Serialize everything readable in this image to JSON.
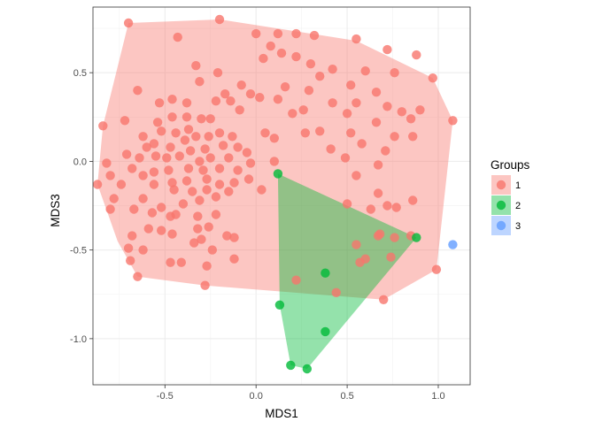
{
  "chart_data": {
    "type": "scatter",
    "title": "",
    "xlabel": "MDS1",
    "ylabel": "MDS3",
    "xlim": [
      -0.895,
      1.175
    ],
    "ylim": [
      -1.26,
      0.87
    ],
    "xticks": [
      -0.5,
      0.0,
      0.5,
      1.0
    ],
    "xtick_labels": [
      "-0.5",
      "0.0",
      "0.5",
      "1.0"
    ],
    "yticks": [
      -1.0,
      -0.5,
      0.0,
      0.5
    ],
    "ytick_labels": [
      "-1.0",
      "-0.5",
      "0.0",
      "0.5"
    ],
    "grid": true,
    "hulls": true,
    "legend": {
      "title": "Groups",
      "position": "right"
    },
    "series": [
      {
        "name": "1",
        "color": "#F8766D",
        "hull": [
          [
            -0.7,
            0.78
          ],
          [
            -0.2,
            0.8
          ],
          [
            0.55,
            0.68
          ],
          [
            0.97,
            0.47
          ],
          [
            1.08,
            0.23
          ],
          [
            0.99,
            -0.61
          ],
          [
            0.7,
            -0.78
          ],
          [
            -0.28,
            -0.7
          ],
          [
            -0.65,
            -0.65
          ],
          [
            -0.76,
            -0.45
          ],
          [
            -0.87,
            -0.13
          ],
          [
            -0.84,
            0.2
          ]
        ],
        "points": [
          [
            -0.7,
            0.78
          ],
          [
            -0.2,
            0.8
          ],
          [
            -0.43,
            0.7
          ],
          [
            0.0,
            0.72
          ],
          [
            0.12,
            0.72
          ],
          [
            0.22,
            0.72
          ],
          [
            0.32,
            0.71
          ],
          [
            0.55,
            0.69
          ],
          [
            0.72,
            0.63
          ],
          [
            0.88,
            0.6
          ],
          [
            0.97,
            0.47
          ],
          [
            0.08,
            0.65
          ],
          [
            0.14,
            0.61
          ],
          [
            0.04,
            0.58
          ],
          [
            0.22,
            0.59
          ],
          [
            0.3,
            0.55
          ],
          [
            0.42,
            0.52
          ],
          [
            0.6,
            0.51
          ],
          [
            0.76,
            0.5
          ],
          [
            -0.33,
            0.54
          ],
          [
            -0.21,
            0.5
          ],
          [
            -0.31,
            0.45
          ],
          [
            0.35,
            0.48
          ],
          [
            0.52,
            0.43
          ],
          [
            0.66,
            0.39
          ],
          [
            -0.08,
            0.43
          ],
          [
            0.16,
            0.42
          ],
          [
            0.29,
            0.4
          ],
          [
            -0.17,
            0.38
          ],
          [
            -0.03,
            0.38
          ],
          [
            -0.46,
            0.35
          ],
          [
            -0.38,
            0.33
          ],
          [
            -0.22,
            0.34
          ],
          [
            -0.14,
            0.34
          ],
          [
            0.02,
            0.36
          ],
          [
            0.12,
            0.35
          ],
          [
            0.42,
            0.33
          ],
          [
            0.55,
            0.33
          ],
          [
            0.72,
            0.31
          ],
          [
            0.8,
            0.28
          ],
          [
            -0.65,
            0.4
          ],
          [
            -0.53,
            0.33
          ],
          [
            -0.09,
            0.29
          ],
          [
            0.26,
            0.29
          ],
          [
            0.2,
            0.27
          ],
          [
            0.5,
            0.27
          ],
          [
            0.9,
            0.29
          ],
          [
            1.08,
            0.23
          ],
          [
            -0.72,
            0.23
          ],
          [
            -0.54,
            0.22
          ],
          [
            -0.46,
            0.25
          ],
          [
            -0.38,
            0.25
          ],
          [
            -0.3,
            0.24
          ],
          [
            -0.25,
            0.24
          ],
          [
            0.66,
            0.22
          ],
          [
            0.85,
            0.24
          ],
          [
            -0.52,
            0.17
          ],
          [
            -0.44,
            0.16
          ],
          [
            -0.37,
            0.18
          ],
          [
            -0.33,
            0.14
          ],
          [
            -0.26,
            0.14
          ],
          [
            -0.2,
            0.16
          ],
          [
            -0.13,
            0.14
          ],
          [
            -0.84,
            0.2
          ],
          [
            -0.62,
            0.14
          ],
          [
            -0.56,
            0.1
          ],
          [
            -0.6,
            0.08
          ],
          [
            -0.47,
            0.08
          ],
          [
            -0.39,
            0.12
          ],
          [
            -0.36,
            0.06
          ],
          [
            -0.28,
            0.07
          ],
          [
            -0.18,
            0.09
          ],
          [
            -0.1,
            0.08
          ],
          [
            0.05,
            0.16
          ],
          [
            0.1,
            0.13
          ],
          [
            0.27,
            0.16
          ],
          [
            0.35,
            0.17
          ],
          [
            0.52,
            0.16
          ],
          [
            0.58,
            0.1
          ],
          [
            0.76,
            0.14
          ],
          [
            0.86,
            0.14
          ],
          [
            0.41,
            0.07
          ],
          [
            0.71,
            0.06
          ],
          [
            -0.71,
            0.04
          ],
          [
            -0.64,
            0.02
          ],
          [
            -0.55,
            0.03
          ],
          [
            -0.49,
            0.02
          ],
          [
            -0.42,
            0.03
          ],
          [
            -0.31,
            0.0
          ],
          [
            -0.25,
            0.02
          ],
          [
            -0.15,
            0.02
          ],
          [
            -0.05,
            0.05
          ],
          [
            0.1,
            0.0
          ],
          [
            0.49,
            0.02
          ],
          [
            -0.82,
            -0.01
          ],
          [
            -0.68,
            -0.04
          ],
          [
            -0.56,
            -0.06
          ],
          [
            -0.48,
            -0.05
          ],
          [
            -0.37,
            -0.04
          ],
          [
            -0.29,
            -0.05
          ],
          [
            -0.2,
            -0.04
          ],
          [
            -0.1,
            -0.05
          ],
          [
            -0.03,
            -0.01
          ],
          [
            0.67,
            -0.02
          ],
          [
            -0.8,
            -0.08
          ],
          [
            -0.62,
            -0.08
          ],
          [
            -0.46,
            -0.12
          ],
          [
            -0.38,
            -0.11
          ],
          [
            -0.27,
            -0.1
          ],
          [
            -0.2,
            -0.13
          ],
          [
            -0.12,
            -0.12
          ],
          [
            -0.04,
            -0.1
          ],
          [
            0.55,
            -0.08
          ],
          [
            -0.87,
            -0.13
          ],
          [
            -0.74,
            -0.13
          ],
          [
            -0.56,
            -0.13
          ],
          [
            -0.45,
            -0.16
          ],
          [
            -0.35,
            -0.17
          ],
          [
            -0.27,
            -0.16
          ],
          [
            -0.15,
            -0.17
          ],
          [
            0.03,
            -0.16
          ],
          [
            0.67,
            -0.18
          ],
          [
            -0.78,
            -0.21
          ],
          [
            -0.62,
            -0.21
          ],
          [
            -0.52,
            -0.26
          ],
          [
            -0.4,
            -0.24
          ],
          [
            -0.31,
            -0.22
          ],
          [
            -0.22,
            -0.2
          ],
          [
            0.86,
            -0.22
          ],
          [
            0.5,
            -0.24
          ],
          [
            0.72,
            -0.25
          ],
          [
            0.63,
            -0.27
          ],
          [
            -0.8,
            -0.27
          ],
          [
            -0.67,
            -0.27
          ],
          [
            -0.57,
            -0.29
          ],
          [
            -0.47,
            -0.31
          ],
          [
            -0.44,
            -0.3
          ],
          [
            -0.32,
            -0.31
          ],
          [
            -0.22,
            -0.3
          ],
          [
            0.77,
            -0.26
          ],
          [
            -0.59,
            -0.38
          ],
          [
            -0.52,
            -0.39
          ],
          [
            -0.46,
            -0.41
          ],
          [
            -0.32,
            -0.38
          ],
          [
            -0.26,
            -0.37
          ],
          [
            0.68,
            -0.41
          ],
          [
            0.85,
            -0.42
          ],
          [
            -0.68,
            -0.42
          ],
          [
            -0.3,
            -0.44
          ],
          [
            -0.16,
            -0.42
          ],
          [
            -0.12,
            -0.43
          ],
          [
            0.67,
            -0.42
          ],
          [
            0.76,
            -0.43
          ],
          [
            -0.7,
            -0.49
          ],
          [
            -0.62,
            -0.5
          ],
          [
            -0.34,
            -0.46
          ],
          [
            0.55,
            -0.47
          ],
          [
            -0.24,
            -0.5
          ],
          [
            0.6,
            -0.55
          ],
          [
            0.74,
            -0.54
          ],
          [
            -0.69,
            -0.56
          ],
          [
            -0.47,
            -0.57
          ],
          [
            -0.41,
            -0.57
          ],
          [
            -0.27,
            -0.59
          ],
          [
            -0.12,
            -0.55
          ],
          [
            0.57,
            -0.57
          ],
          [
            0.99,
            -0.61
          ],
          [
            -0.65,
            -0.65
          ],
          [
            -0.28,
            -0.7
          ],
          [
            0.22,
            -0.67
          ],
          [
            0.44,
            -0.74
          ],
          [
            0.7,
            -0.78
          ]
        ]
      },
      {
        "name": "2",
        "color": "#00BA38",
        "hull": [
          [
            0.12,
            -0.07
          ],
          [
            0.88,
            -0.43
          ],
          [
            0.28,
            -1.17
          ],
          [
            0.19,
            -1.15
          ],
          [
            0.13,
            -0.81
          ]
        ],
        "points": [
          [
            0.12,
            -0.07
          ],
          [
            0.88,
            -0.43
          ],
          [
            0.38,
            -0.63
          ],
          [
            0.13,
            -0.81
          ],
          [
            0.38,
            -0.96
          ],
          [
            0.19,
            -1.15
          ],
          [
            0.28,
            -1.17
          ]
        ]
      },
      {
        "name": "3",
        "color": "#619CFF",
        "hull": [],
        "points": [
          [
            1.08,
            -0.47
          ]
        ]
      }
    ]
  }
}
